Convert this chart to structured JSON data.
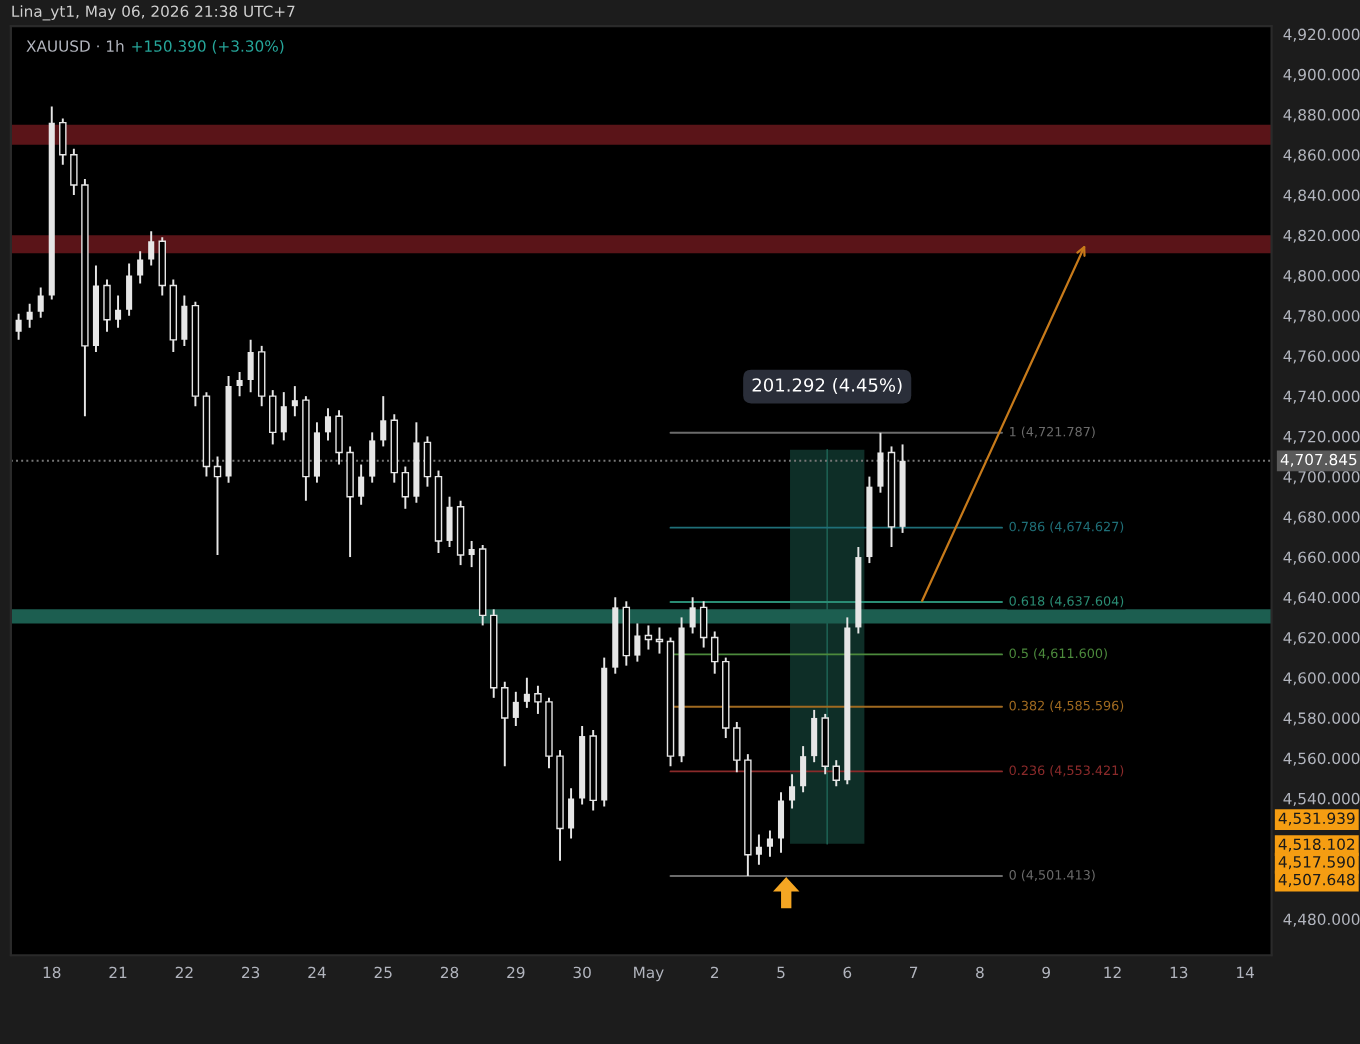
{
  "chart_data": {
    "type": "candlestick",
    "title": "XAUUSD · 1h",
    "subtitle": "+150.390 (+3.30%)",
    "color": "#e6e6e6",
    "annotations": [
      "Lina_yt1, May 06, 2026 21:38 UTC+7",
      "201.292 (4.45%)",
      "4,531.939",
      "4,518.102",
      "4,517.590",
      "4,507.648"
    ],
    "categories": [
      null,
      null,
      null,
      "18",
      null,
      null,
      null,
      null,
      null,
      "21",
      null,
      null,
      null,
      null,
      null,
      "22",
      null,
      null,
      null,
      null,
      null,
      "23",
      null,
      null,
      null,
      null,
      null,
      "24",
      null,
      null,
      null,
      null,
      null,
      "25",
      null,
      null,
      null,
      null,
      null,
      "28",
      null,
      null,
      null,
      null,
      null,
      "29",
      null,
      null,
      null,
      null,
      null,
      "30",
      null,
      null,
      null,
      null,
      null,
      "May",
      null,
      null,
      null,
      null,
      null,
      "2",
      null,
      null,
      null,
      null,
      null,
      "5",
      null,
      null,
      null,
      null,
      null,
      "6",
      null,
      null,
      null,
      null,
      null,
      "7",
      null,
      null,
      null,
      null,
      null,
      "8",
      null,
      null,
      null,
      null,
      null,
      "9",
      null,
      null,
      null,
      null,
      null,
      "12",
      null,
      null,
      null,
      null,
      null,
      "13",
      null,
      null,
      null,
      null,
      null,
      "14",
      null,
      null
    ],
    "ohlc": [
      [
        4772,
        4781,
        4768,
        4778
      ],
      [
        4778,
        4786,
        4774,
        4782
      ],
      [
        4782,
        4794,
        4779,
        4790
      ],
      [
        4790,
        4884,
        4788,
        4876
      ],
      [
        4876,
        4878,
        4855,
        4860
      ],
      [
        4860,
        4863,
        4840,
        4845
      ],
      [
        4845,
        4848,
        4730,
        4765
      ],
      [
        4765,
        4805,
        4762,
        4795
      ],
      [
        4795,
        4798,
        4772,
        4778
      ],
      [
        4778,
        4790,
        4774,
        4783
      ],
      [
        4783,
        4806,
        4780,
        4800
      ],
      [
        4800,
        4812,
        4796,
        4808
      ],
      [
        4808,
        4822,
        4805,
        4817
      ],
      [
        4817,
        4819,
        4790,
        4795
      ],
      [
        4795,
        4798,
        4762,
        4768
      ],
      [
        4768,
        4790,
        4765,
        4785
      ],
      [
        4785,
        4787,
        4735,
        4740
      ],
      [
        4740,
        4742,
        4700,
        4705
      ],
      [
        4705,
        4710,
        4661,
        4700
      ],
      [
        4700,
        4750,
        4697,
        4745
      ],
      [
        4745,
        4752,
        4740,
        4748
      ],
      [
        4748,
        4768,
        4742,
        4762
      ],
      [
        4762,
        4765,
        4735,
        4740
      ],
      [
        4740,
        4743,
        4716,
        4722
      ],
      [
        4722,
        4742,
        4718,
        4735
      ],
      [
        4735,
        4745,
        4730,
        4738
      ],
      [
        4738,
        4740,
        4688,
        4700
      ],
      [
        4700,
        4727,
        4697,
        4722
      ],
      [
        4722,
        4734,
        4718,
        4730
      ],
      [
        4730,
        4733,
        4706,
        4712
      ],
      [
        4712,
        4715,
        4660,
        4690
      ],
      [
        4690,
        4706,
        4686,
        4700
      ],
      [
        4700,
        4722,
        4697,
        4718
      ],
      [
        4718,
        4740,
        4715,
        4728
      ],
      [
        4728,
        4731,
        4697,
        4702
      ],
      [
        4702,
        4705,
        4684,
        4690
      ],
      [
        4690,
        4727,
        4687,
        4717
      ],
      [
        4717,
        4720,
        4695,
        4700
      ],
      [
        4700,
        4703,
        4662,
        4668
      ],
      [
        4668,
        4690,
        4665,
        4685
      ],
      [
        4685,
        4688,
        4656,
        4661
      ],
      [
        4661,
        4668,
        4655,
        4664
      ],
      [
        4664,
        4666,
        4626,
        4631
      ],
      [
        4631,
        4634,
        4590,
        4595
      ],
      [
        4595,
        4598,
        4556,
        4580
      ],
      [
        4580,
        4593,
        4576,
        4588
      ],
      [
        4588,
        4600,
        4585,
        4592
      ],
      [
        4592,
        4596,
        4582,
        4588
      ],
      [
        4588,
        4590,
        4555,
        4561
      ],
      [
        4561,
        4564,
        4509,
        4525
      ],
      [
        4525,
        4545,
        4520,
        4540
      ],
      [
        4540,
        4576,
        4537,
        4571
      ],
      [
        4571,
        4574,
        4534,
        4539
      ],
      [
        4539,
        4610,
        4536,
        4605
      ],
      [
        4605,
        4640,
        4602,
        4635
      ],
      [
        4635,
        4638,
        4606,
        4611
      ],
      [
        4611,
        4627,
        4608,
        4621
      ],
      [
        4621,
        4626,
        4614,
        4619
      ],
      [
        4619,
        4625,
        4612,
        4618
      ],
      [
        4618,
        4620,
        4556,
        4561
      ],
      [
        4561,
        4630,
        4558,
        4625
      ],
      [
        4625,
        4640,
        4622,
        4635
      ],
      [
        4635,
        4638,
        4615,
        4620
      ],
      [
        4620,
        4623,
        4602,
        4608
      ],
      [
        4608,
        4610,
        4570,
        4575
      ],
      [
        4575,
        4578,
        4553,
        4559
      ],
      [
        4559,
        4562,
        4501.413,
        4512
      ],
      [
        4512,
        4522,
        4507,
        4516
      ],
      [
        4516,
        4524,
        4511,
        4520
      ],
      [
        4520,
        4543,
        4513,
        4539
      ],
      [
        4539,
        4552,
        4535,
        4546
      ],
      [
        4546,
        4566,
        4543,
        4561
      ],
      [
        4561,
        4584,
        4558,
        4580
      ],
      [
        4580,
        4582,
        4552,
        4556
      ],
      [
        4556,
        4559,
        4546,
        4549
      ],
      [
        4549,
        4630,
        4547,
        4625
      ],
      [
        4625,
        4665,
        4622,
        4660
      ],
      [
        4660,
        4700,
        4657,
        4695
      ],
      [
        4695,
        4721.787,
        4692,
        4712
      ],
      [
        4712,
        4715,
        4665,
        4675
      ],
      [
        4675,
        4716,
        4672,
        4707.845
      ],
      null,
      null,
      null,
      null,
      null,
      null,
      null,
      null,
      null,
      null,
      null,
      null,
      null,
      null,
      null,
      null,
      null,
      null,
      null,
      null,
      null,
      null,
      null,
      null,
      null,
      null,
      null,
      null,
      null,
      null,
      null,
      null,
      null
    ],
    "series": [
      {
        "name": "1 (4,721.787)",
        "type": "line",
        "color": "#6b6b6b",
        "values": [
          null,
          null,
          null,
          null,
          null,
          null,
          null,
          null,
          null,
          null,
          null,
          null,
          null,
          null,
          null,
          null,
          null,
          null,
          null,
          null,
          null,
          null,
          null,
          null,
          null,
          null,
          null,
          null,
          null,
          null,
          null,
          null,
          null,
          null,
          null,
          null,
          null,
          null,
          null,
          null,
          null,
          null,
          null,
          null,
          null,
          null,
          null,
          null,
          null,
          null,
          null,
          null,
          null,
          null,
          null,
          null,
          null,
          null,
          null,
          4721.787,
          4721.787,
          4721.787,
          4721.787,
          4721.787,
          4721.787,
          4721.787,
          4721.787,
          4721.787,
          4721.787,
          4721.787,
          4721.787,
          4721.787,
          4721.787,
          4721.787,
          4721.787,
          4721.787,
          4721.787,
          4721.787,
          4721.787,
          4721.787,
          4721.787,
          4721.787,
          4721.787,
          4721.787,
          4721.787,
          4721.787,
          4721.787,
          4721.787,
          4721.787,
          4721.787,
          null,
          null,
          null,
          null,
          null,
          null,
          null,
          null,
          null,
          null,
          null,
          null,
          null,
          null,
          null,
          null,
          null,
          null,
          null,
          null,
          null,
          null,
          null,
          null
        ]
      },
      {
        "name": "0.786 (4,674.627)",
        "type": "line",
        "color": "#1f6f78",
        "values": [
          null,
          null,
          null,
          null,
          null,
          null,
          null,
          null,
          null,
          null,
          null,
          null,
          null,
          null,
          null,
          null,
          null,
          null,
          null,
          null,
          null,
          null,
          null,
          null,
          null,
          null,
          null,
          null,
          null,
          null,
          null,
          null,
          null,
          null,
          null,
          null,
          null,
          null,
          null,
          null,
          null,
          null,
          null,
          null,
          null,
          null,
          null,
          null,
          null,
          null,
          null,
          null,
          null,
          null,
          null,
          null,
          null,
          null,
          null,
          4674.627,
          4674.627,
          4674.627,
          4674.627,
          4674.627,
          4674.627,
          4674.627,
          4674.627,
          4674.627,
          4674.627,
          4674.627,
          4674.627,
          4674.627,
          4674.627,
          4674.627,
          4674.627,
          4674.627,
          4674.627,
          4674.627,
          4674.627,
          4674.627,
          4674.627,
          4674.627,
          4674.627,
          4674.627,
          4674.627,
          4674.627,
          4674.627,
          4674.627,
          4674.627,
          4674.627,
          null,
          null,
          null,
          null,
          null,
          null,
          null,
          null,
          null,
          null,
          null,
          null,
          null,
          null,
          null,
          null,
          null,
          null,
          null,
          null,
          null,
          null,
          null,
          null
        ]
      },
      {
        "name": "0.618 (4,637.604)",
        "type": "line",
        "color": "#2a8c74",
        "values": [
          null,
          null,
          null,
          null,
          null,
          null,
          null,
          null,
          null,
          null,
          null,
          null,
          null,
          null,
          null,
          null,
          null,
          null,
          null,
          null,
          null,
          null,
          null,
          null,
          null,
          null,
          null,
          null,
          null,
          null,
          null,
          null,
          null,
          null,
          null,
          null,
          null,
          null,
          null,
          null,
          null,
          null,
          null,
          null,
          null,
          null,
          null,
          null,
          null,
          null,
          null,
          null,
          null,
          null,
          null,
          null,
          null,
          null,
          null,
          4637.604,
          4637.604,
          4637.604,
          4637.604,
          4637.604,
          4637.604,
          4637.604,
          4637.604,
          4637.604,
          4637.604,
          4637.604,
          4637.604,
          4637.604,
          4637.604,
          4637.604,
          4637.604,
          4637.604,
          4637.604,
          4637.604,
          4637.604,
          4637.604,
          4637.604,
          4637.604,
          4637.604,
          4637.604,
          4637.604,
          4637.604,
          4637.604,
          4637.604,
          4637.604,
          4637.604,
          null,
          null,
          null,
          null,
          null,
          null,
          null,
          null,
          null,
          null,
          null,
          null,
          null,
          null,
          null,
          null,
          null,
          null,
          null,
          null,
          null,
          null,
          null,
          null
        ]
      },
      {
        "name": "0.5 (4,611.600)",
        "type": "line",
        "color": "#4c8a3c",
        "values": [
          null,
          null,
          null,
          null,
          null,
          null,
          null,
          null,
          null,
          null,
          null,
          null,
          null,
          null,
          null,
          null,
          null,
          null,
          null,
          null,
          null,
          null,
          null,
          null,
          null,
          null,
          null,
          null,
          null,
          null,
          null,
          null,
          null,
          null,
          null,
          null,
          null,
          null,
          null,
          null,
          null,
          null,
          null,
          null,
          null,
          null,
          null,
          null,
          null,
          null,
          null,
          null,
          null,
          null,
          null,
          null,
          null,
          null,
          null,
          4611.6,
          4611.6,
          4611.6,
          4611.6,
          4611.6,
          4611.6,
          4611.6,
          4611.6,
          4611.6,
          4611.6,
          4611.6,
          4611.6,
          4611.6,
          4611.6,
          4611.6,
          4611.6,
          4611.6,
          4611.6,
          4611.6,
          4611.6,
          4611.6,
          4611.6,
          4611.6,
          4611.6,
          4611.6,
          4611.6,
          4611.6,
          4611.6,
          4611.6,
          4611.6,
          4611.6,
          null,
          null,
          null,
          null,
          null,
          null,
          null,
          null,
          null,
          null,
          null,
          null,
          null,
          null,
          null,
          null,
          null,
          null,
          null,
          null,
          null,
          null,
          null,
          null
        ]
      },
      {
        "name": "0.382 (4,585.596)",
        "type": "line",
        "color": "#a06a20",
        "values": [
          null,
          null,
          null,
          null,
          null,
          null,
          null,
          null,
          null,
          null,
          null,
          null,
          null,
          null,
          null,
          null,
          null,
          null,
          null,
          null,
          null,
          null,
          null,
          null,
          null,
          null,
          null,
          null,
          null,
          null,
          null,
          null,
          null,
          null,
          null,
          null,
          null,
          null,
          null,
          null,
          null,
          null,
          null,
          null,
          null,
          null,
          null,
          null,
          null,
          null,
          null,
          null,
          null,
          null,
          null,
          null,
          null,
          null,
          null,
          4585.596,
          4585.596,
          4585.596,
          4585.596,
          4585.596,
          4585.596,
          4585.596,
          4585.596,
          4585.596,
          4585.596,
          4585.596,
          4585.596,
          4585.596,
          4585.596,
          4585.596,
          4585.596,
          4585.596,
          4585.596,
          4585.596,
          4585.596,
          4585.596,
          4585.596,
          4585.596,
          4585.596,
          4585.596,
          4585.596,
          4585.596,
          4585.596,
          4585.596,
          4585.596,
          4585.596,
          null,
          null,
          null,
          null,
          null,
          null,
          null,
          null,
          null,
          null,
          null,
          null,
          null,
          null,
          null,
          null,
          null,
          null,
          null,
          null,
          null,
          null,
          null,
          null
        ]
      },
      {
        "name": "0.236 (4,553.421)",
        "type": "line",
        "color": "#8a2a2a",
        "values": [
          null,
          null,
          null,
          null,
          null,
          null,
          null,
          null,
          null,
          null,
          null,
          null,
          null,
          null,
          null,
          null,
          null,
          null,
          null,
          null,
          null,
          null,
          null,
          null,
          null,
          null,
          null,
          null,
          null,
          null,
          null,
          null,
          null,
          null,
          null,
          null,
          null,
          null,
          null,
          null,
          null,
          null,
          null,
          null,
          null,
          null,
          null,
          null,
          null,
          null,
          null,
          null,
          null,
          null,
          null,
          null,
          null,
          null,
          null,
          4553.421,
          4553.421,
          4553.421,
          4553.421,
          4553.421,
          4553.421,
          4553.421,
          4553.421,
          4553.421,
          4553.421,
          4553.421,
          4553.421,
          4553.421,
          4553.421,
          4553.421,
          4553.421,
          4553.421,
          4553.421,
          4553.421,
          4553.421,
          4553.421,
          4553.421,
          4553.421,
          4553.421,
          4553.421,
          4553.421,
          4553.421,
          4553.421,
          4553.421,
          4553.421,
          4553.421,
          null,
          null,
          null,
          null,
          null,
          null,
          null,
          null,
          null,
          null,
          null,
          null,
          null,
          null,
          null,
          null,
          null,
          null,
          null,
          null,
          null,
          null,
          null,
          null
        ]
      },
      {
        "name": "0 (4,501.413)",
        "type": "line",
        "color": "#6b6b6b",
        "values": [
          null,
          null,
          null,
          null,
          null,
          null,
          null,
          null,
          null,
          null,
          null,
          null,
          null,
          null,
          null,
          null,
          null,
          null,
          null,
          null,
          null,
          null,
          null,
          null,
          null,
          null,
          null,
          null,
          null,
          null,
          null,
          null,
          null,
          null,
          null,
          null,
          null,
          null,
          null,
          null,
          null,
          null,
          null,
          null,
          null,
          null,
          null,
          null,
          null,
          null,
          null,
          null,
          null,
          null,
          null,
          null,
          null,
          null,
          null,
          4501.413,
          4501.413,
          4501.413,
          4501.413,
          4501.413,
          4501.413,
          4501.413,
          4501.413,
          4501.413,
          4501.413,
          4501.413,
          4501.413,
          4501.413,
          4501.413,
          4501.413,
          4501.413,
          4501.413,
          4501.413,
          4501.413,
          4501.413,
          4501.413,
          4501.413,
          4501.413,
          4501.413,
          4501.413,
          4501.413,
          4501.413,
          4501.413,
          4501.413,
          4501.413,
          4501.413,
          null,
          null,
          null,
          null,
          null,
          null,
          null,
          null,
          null,
          null,
          null,
          null,
          null,
          null,
          null,
          null,
          null,
          null,
          null,
          null,
          null,
          null,
          null,
          null
        ]
      }
    ],
    "bands": [
      {
        "axis": "y",
        "from": 4865,
        "to": 4875,
        "color": "#5a1418"
      },
      {
        "axis": "y",
        "from": 4811,
        "to": 4820,
        "color": "#5a1418"
      },
      {
        "axis": "y",
        "from": 4627,
        "to": 4634,
        "color": "#1c5e50"
      }
    ],
    "ref_lines": [
      {
        "axis": "y",
        "value": 4707.845,
        "label": "4,707.845",
        "line_style": "dotted",
        "color": "#777777"
      }
    ],
    "ylim": [
      4462,
      4924
    ],
    "yticks": [
      {
        "value": 4480,
        "label": "4,480.000"
      },
      {
        "value": 4540,
        "label": "4,540.000"
      },
      {
        "value": 4560,
        "label": "4,560.000"
      },
      {
        "value": 4580,
        "label": "4,580.000"
      },
      {
        "value": 4600,
        "label": "4,600.000"
      },
      {
        "value": 4620,
        "label": "4,620.000"
      },
      {
        "value": 4640,
        "label": "4,640.000"
      },
      {
        "value": 4660,
        "label": "4,660.000"
      },
      {
        "value": 4680,
        "label": "4,680.000"
      },
      {
        "value": 4700,
        "label": "4,700.000"
      },
      {
        "value": 4720,
        "label": "4,720.000"
      },
      {
        "value": 4740,
        "label": "4,740.000"
      },
      {
        "value": 4760,
        "label": "4,760.000"
      },
      {
        "value": 4780,
        "label": "4,780.000"
      },
      {
        "value": 4800,
        "label": "4,800.000"
      },
      {
        "value": 4820,
        "label": "4,820.000"
      },
      {
        "value": 4840,
        "label": "4,840.000"
      },
      {
        "value": 4860,
        "label": "4,860.000"
      },
      {
        "value": 4880,
        "label": "4,880.000"
      },
      {
        "value": 4900,
        "label": "4,900.000"
      },
      {
        "value": 4920,
        "label": "4,920.000"
      }
    ]
  }
}
